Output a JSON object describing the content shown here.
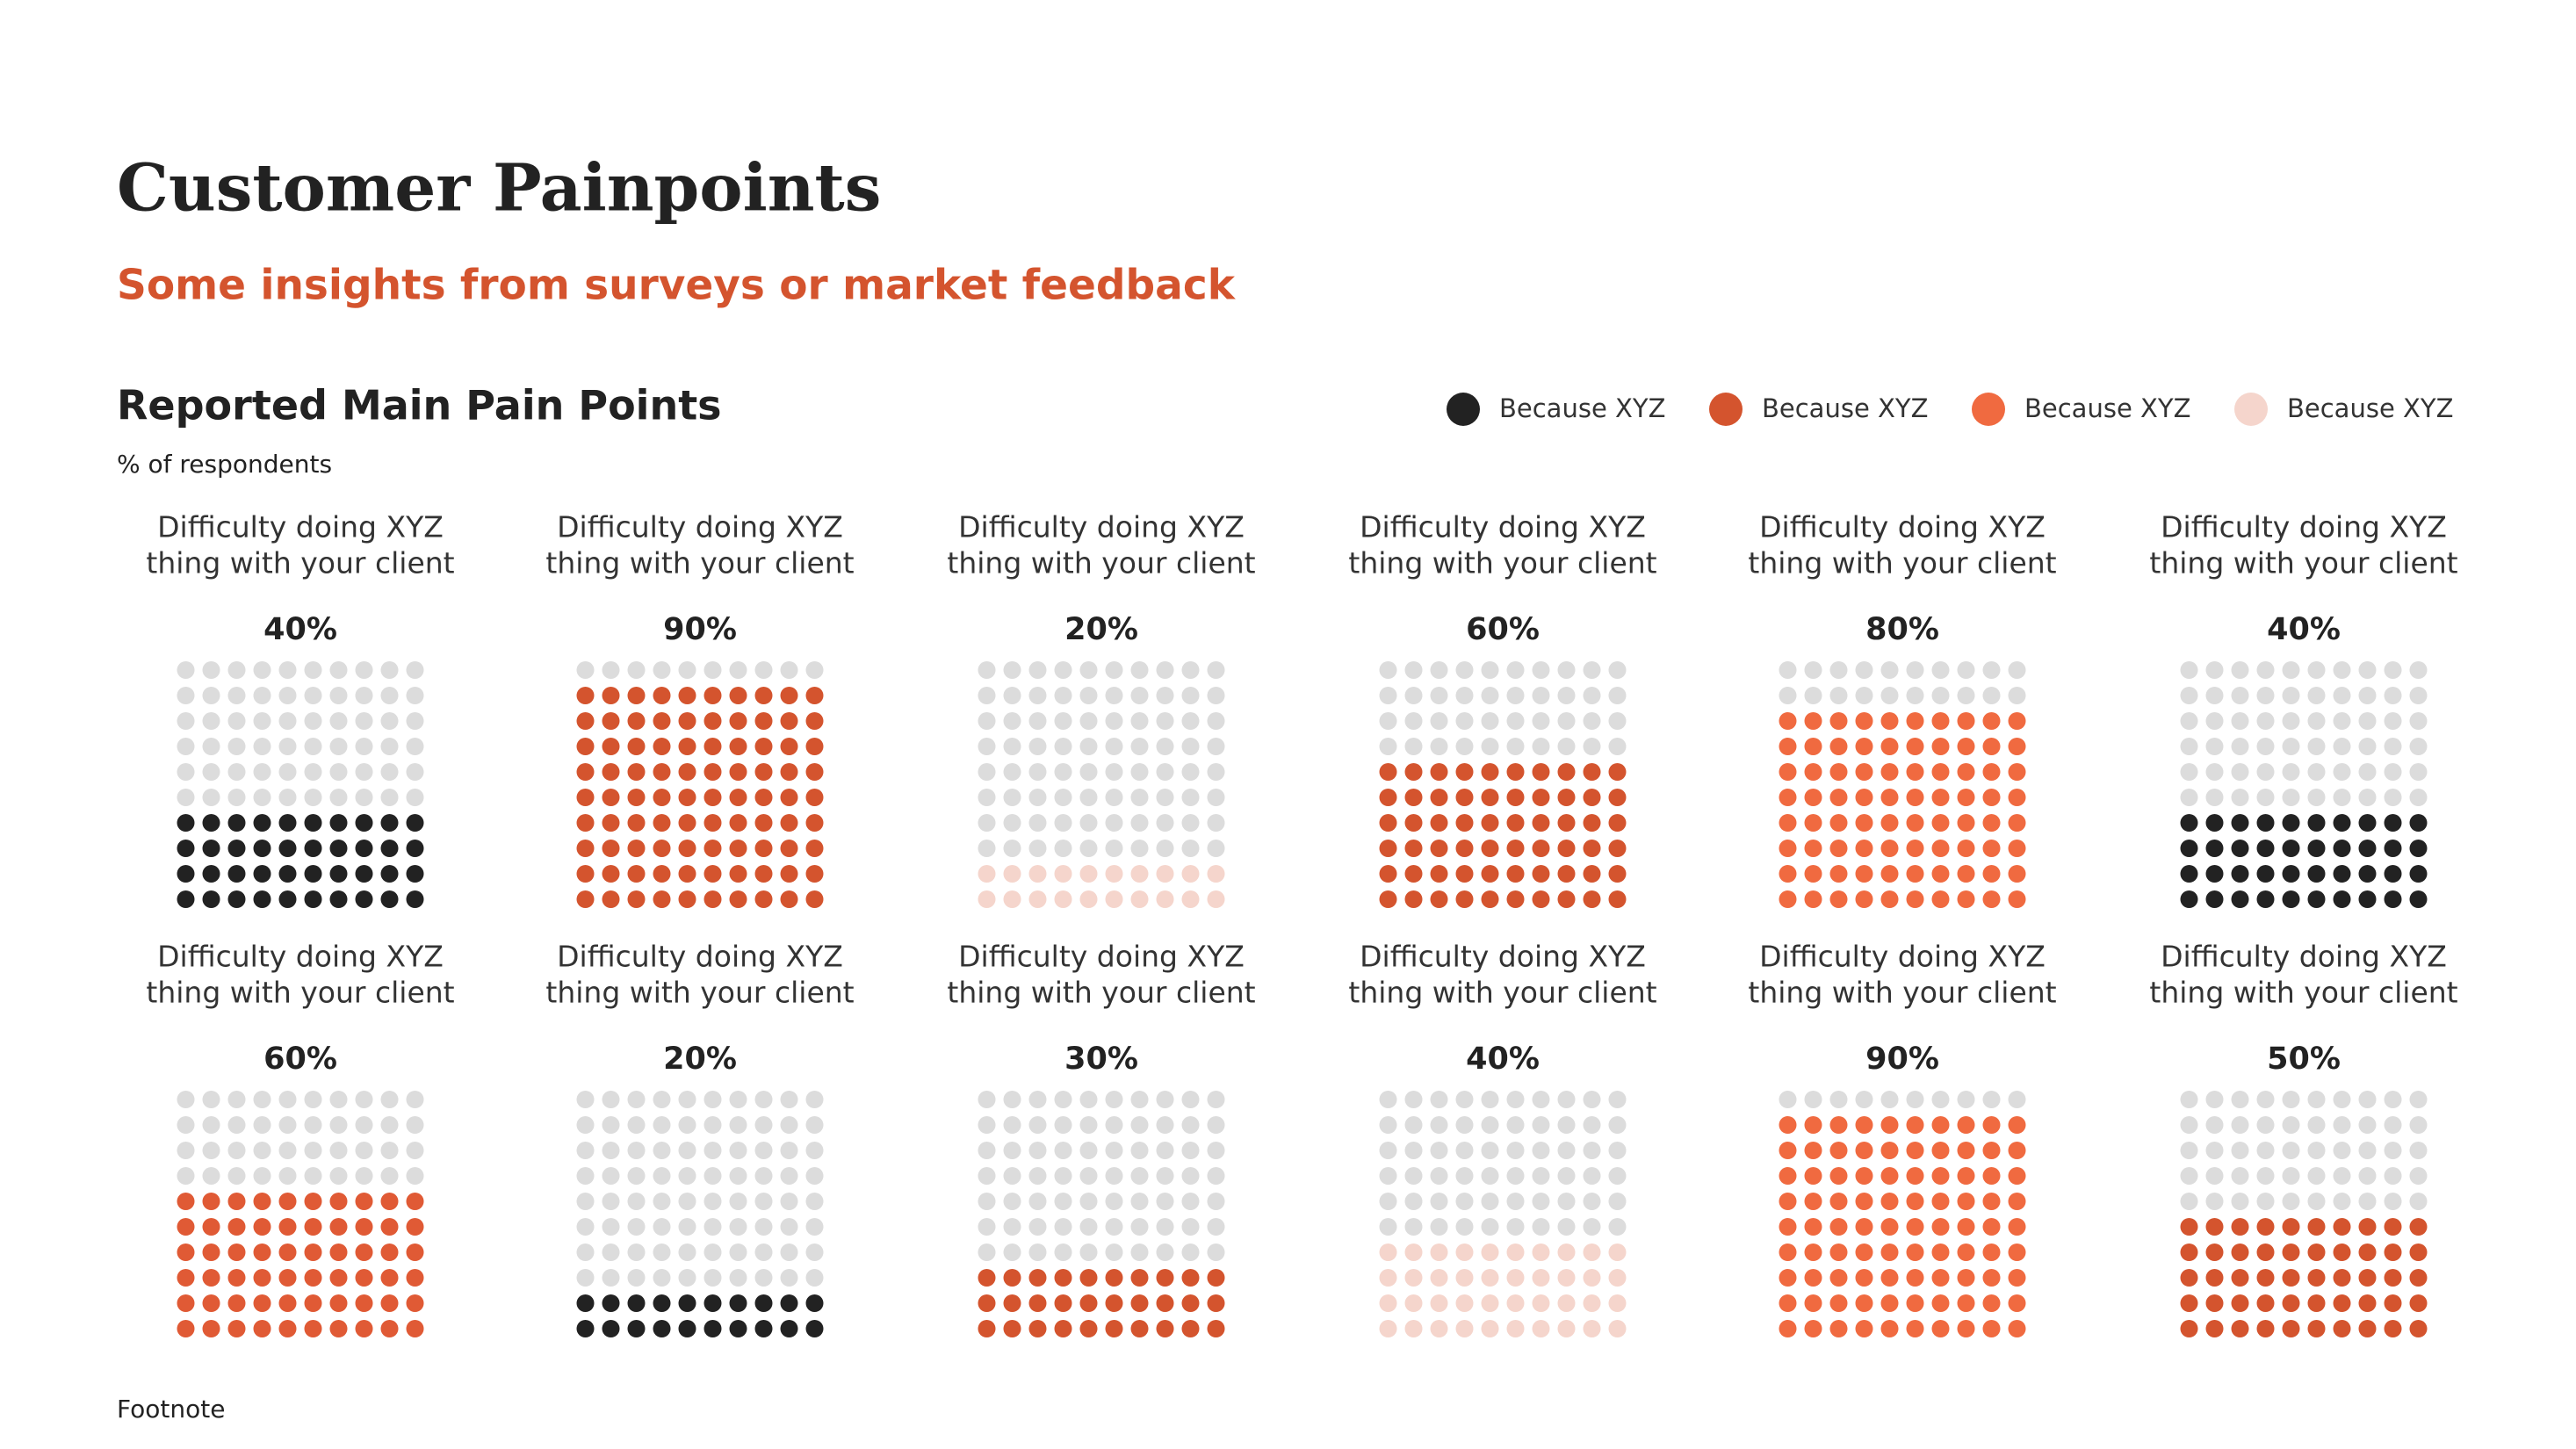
{
  "header": {
    "title": "Customer Painpoints",
    "subtitle": "Some insights from surveys or market feedback"
  },
  "section": {
    "title": "Reported Main Pain Points",
    "subtitle": "% of respondents"
  },
  "legend": {
    "items": [
      {
        "name": "Because XYZ",
        "color": "#222222"
      },
      {
        "name": "Because XYZ",
        "color": "#d4542e"
      },
      {
        "name": "Because XYZ",
        "color": "#f06a40"
      },
      {
        "name": "Because XYZ",
        "color": "#f5d5cc"
      }
    ]
  },
  "chart_data": [
    {
      "type": "waffle",
      "title": [
        "Difficulty doing XYZ",
        "thing with your client"
      ],
      "values": [
        40
      ],
      "value_labels": [
        "40%"
      ],
      "color": "#222222"
    },
    {
      "type": "waffle",
      "title": [
        "Difficulty doing XYZ",
        "thing with your client"
      ],
      "values": [
        90
      ],
      "value_labels": [
        "90%"
      ],
      "color": "#d4542e"
    },
    {
      "type": "waffle",
      "title": [
        "Difficulty doing XYZ",
        "thing with your client"
      ],
      "values": [
        20
      ],
      "value_labels": [
        "20%"
      ],
      "color": "#f5d5cc"
    },
    {
      "type": "waffle",
      "title": [
        "Difficulty doing XYZ",
        "thing with your client"
      ],
      "values": [
        60
      ],
      "value_labels": [
        "60%"
      ],
      "color": "#d4542e"
    },
    {
      "type": "waffle",
      "title": [
        "Difficulty doing XYZ",
        "thing with your client"
      ],
      "values": [
        80
      ],
      "value_labels": [
        "80%"
      ],
      "color": "#f06a40"
    },
    {
      "type": "waffle",
      "title": [
        "Difficulty doing XYZ",
        "thing with your client"
      ],
      "values": [
        40
      ],
      "value_labels": [
        "40%"
      ],
      "color": "#222222"
    },
    {
      "type": "waffle",
      "title": [
        "Difficulty doing XYZ",
        "thing with your client"
      ],
      "values": [
        60
      ],
      "value_labels": [
        "60%"
      ],
      "color": "#e05a35"
    },
    {
      "type": "waffle",
      "title": [
        "Difficulty doing XYZ",
        "thing with your client"
      ],
      "values": [
        20
      ],
      "value_labels": [
        "20%"
      ],
      "color": "#222222"
    },
    {
      "type": "waffle",
      "title": [
        "Difficulty doing XYZ",
        "thing with your client"
      ],
      "values": [
        30
      ],
      "value_labels": [
        "30%"
      ],
      "color": "#d4542e"
    },
    {
      "type": "waffle",
      "title": [
        "Difficulty doing XYZ",
        "thing with your client"
      ],
      "values": [
        40
      ],
      "value_labels": [
        "40%"
      ],
      "color": "#f5d5cc"
    },
    {
      "type": "waffle",
      "title": [
        "Difficulty doing XYZ",
        "thing with your client"
      ],
      "values": [
        90
      ],
      "value_labels": [
        "90%"
      ],
      "color": "#f06a40"
    },
    {
      "type": "waffle",
      "title": [
        "Difficulty doing XYZ",
        "thing with your client"
      ],
      "values": [
        50
      ],
      "value_labels": [
        "50%"
      ],
      "color": "#d4542e"
    }
  ],
  "footnote": "Footnote"
}
